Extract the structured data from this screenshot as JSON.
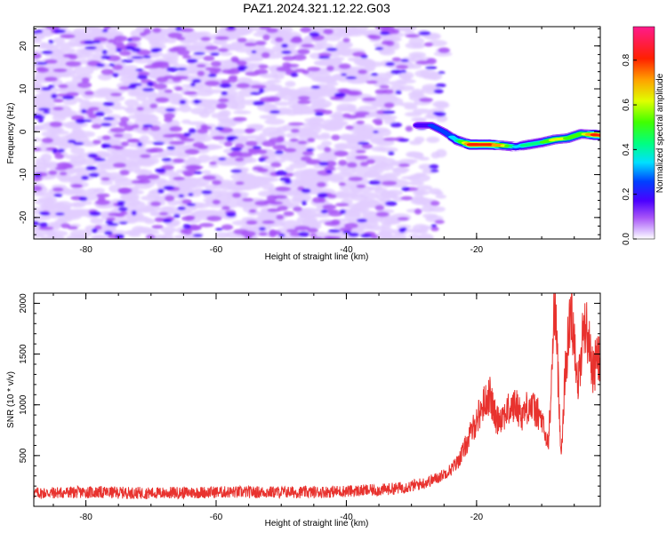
{
  "title": "PAZ1.2024.321.12.22.G03",
  "chart_data": [
    {
      "type": "heatmap",
      "xlabel": "Height of straight line (km)",
      "ylabel": "Frequency (Hz)",
      "xlim": [
        -88,
        -1
      ],
      "ylim": [
        -25,
        24.5
      ],
      "xticks": [
        -80,
        -60,
        -40,
        -20
      ],
      "yticks": [
        -20,
        -10,
        0,
        10,
        20
      ],
      "colorbar": {
        "label": "Normalized spectral amplitude",
        "range": [
          0,
          0.95
        ],
        "ticks": [
          0.0,
          0.2,
          0.4,
          0.6,
          0.8
        ]
      },
      "noise_region_x": [
        -88,
        -25
      ],
      "signal_ridge": {
        "x": [
          -29,
          -27,
          -25,
          -23,
          -21,
          -20,
          -18,
          -16,
          -14,
          -12,
          -10,
          -8,
          -6,
          -4,
          -2,
          -1
        ],
        "frequency": [
          1.5,
          1.5,
          0,
          -2,
          -3,
          -3,
          -3,
          -3.2,
          -3.5,
          -3,
          -2.5,
          -1.8,
          -1.5,
          -0.5,
          -0.7,
          -0.8
        ],
        "amplitude": [
          0.25,
          0.3,
          0.3,
          0.45,
          0.85,
          0.9,
          0.9,
          0.75,
          0.45,
          0.5,
          0.55,
          0.7,
          0.65,
          0.6,
          0.85,
          0.9
        ]
      }
    },
    {
      "type": "line",
      "xlabel": "Height of straight line (km)",
      "ylabel": "SNR (10 * v/v)",
      "xlim": [
        -88,
        -1
      ],
      "ylim": [
        0,
        2100
      ],
      "xticks": [
        -80,
        -60,
        -40,
        -20
      ],
      "yticks": [
        500,
        1000,
        1500,
        2000
      ],
      "series_color": "#e8322e",
      "series": [
        {
          "x": [
            -88,
            -80,
            -70,
            -60,
            -50,
            -45,
            -40,
            -35,
            -32,
            -30,
            -28,
            -26,
            -24,
            -23,
            -22,
            -21,
            -20,
            -19,
            -18,
            -17,
            -16,
            -15,
            -14,
            -13,
            -12,
            -11,
            -10,
            -9.5,
            -9,
            -8.5,
            -8,
            -7.5,
            -7,
            -6.5,
            -6,
            -5.5,
            -5,
            -4.5,
            -4,
            -3.5,
            -3,
            -2.5,
            -2,
            -1.5,
            -1
          ],
          "y": [
            130,
            140,
            130,
            140,
            140,
            140,
            150,
            160,
            180,
            200,
            230,
            280,
            360,
            430,
            550,
            700,
            850,
            1000,
            1100,
            850,
            900,
            950,
            1000,
            900,
            1000,
            950,
            850,
            700,
            600,
            1200,
            2100,
            1300,
            500,
            1200,
            1600,
            1950,
            1700,
            1200,
            1400,
            1850,
            1700,
            1500,
            1300,
            1500,
            1400
          ]
        }
      ]
    }
  ]
}
